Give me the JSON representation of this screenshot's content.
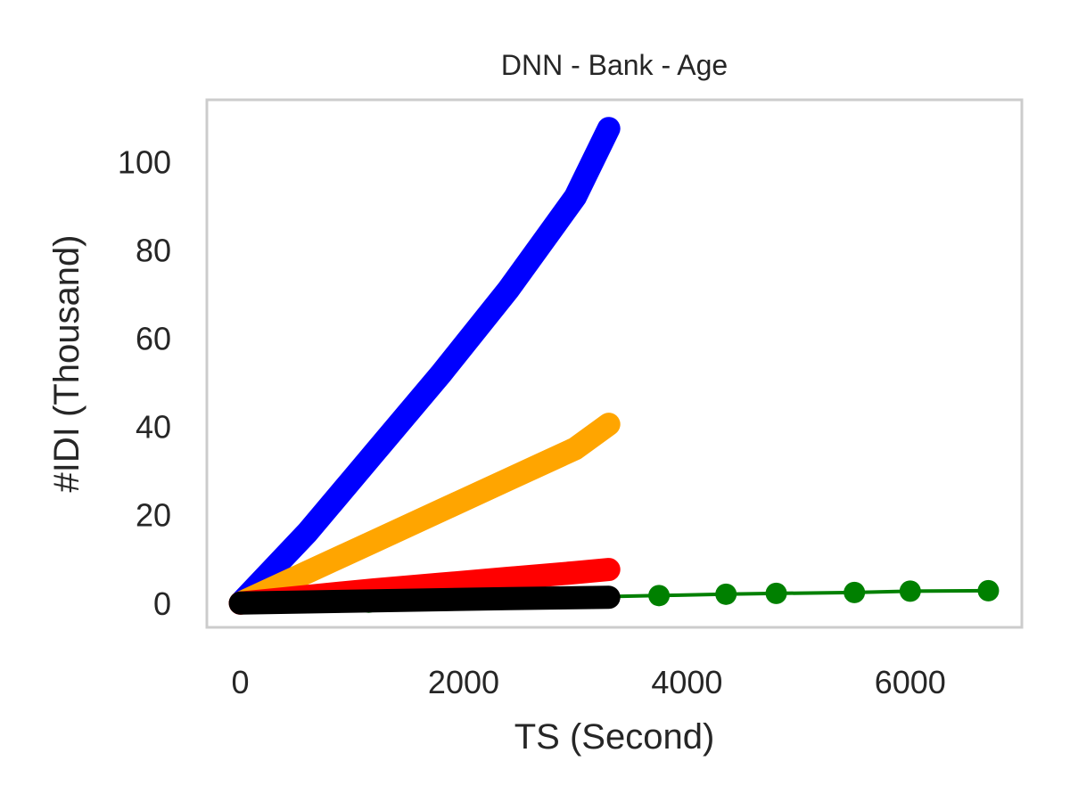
{
  "chart_data": {
    "type": "line",
    "title": "DNN - Bank - Age",
    "xlabel": "TS (Second)",
    "ylabel": "#IDI (Thousand)",
    "xlim": [
      -300,
      7000
    ],
    "ylim": [
      -5.5,
      114
    ],
    "xticks": [
      0,
      2000,
      4000,
      6000
    ],
    "yticks": [
      0,
      20,
      40,
      60,
      80,
      100
    ],
    "grid": false,
    "series": [
      {
        "color": "#008000",
        "marker": "small",
        "x": [
          0,
          1150,
          3000,
          3750,
          4350,
          4800,
          5500,
          6000,
          6700
        ],
        "y": [
          0,
          0.2,
          1.3,
          1.7,
          2.0,
          2.2,
          2.4,
          2.7,
          2.8
        ]
      },
      {
        "color": "#0000ff",
        "marker": "dense",
        "x": [
          0,
          600,
          1200,
          1800,
          2400,
          3000,
          3300
        ],
        "y": [
          0,
          16,
          34,
          52,
          71,
          92,
          107.5
        ]
      },
      {
        "color": "#ffa500",
        "marker": "dense",
        "x": [
          0,
          600,
          1200,
          1800,
          2400,
          3000,
          3300
        ],
        "y": [
          0,
          7,
          14,
          21,
          28,
          35,
          40.5
        ]
      },
      {
        "color": "#ff0000",
        "marker": "dense",
        "x": [
          0,
          600,
          1200,
          1800,
          2400,
          3000,
          3300
        ],
        "y": [
          0,
          1.5,
          3,
          4.3,
          5.6,
          6.9,
          7.6
        ]
      },
      {
        "color": "#000000",
        "marker": "dense",
        "x": [
          0,
          600,
          1200,
          1800,
          2400,
          3000,
          3300
        ],
        "y": [
          0,
          0.25,
          0.5,
          0.75,
          1.0,
          1.2,
          1.3
        ]
      }
    ]
  }
}
